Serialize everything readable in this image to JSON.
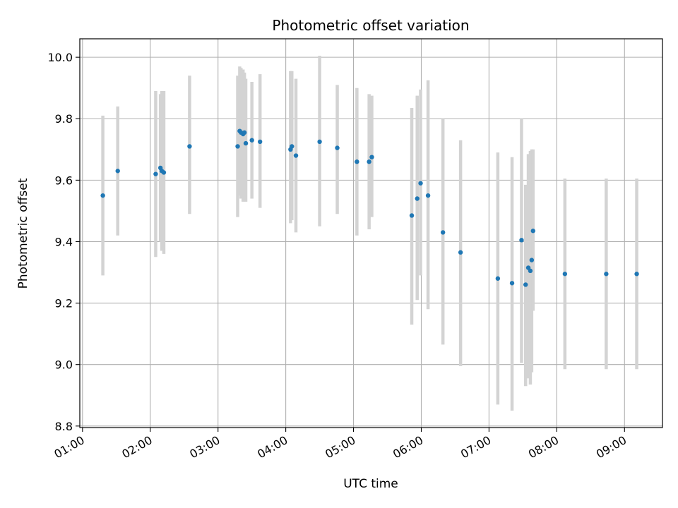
{
  "chart_data": {
    "type": "scatter",
    "title": "Photometric offset variation",
    "xlabel": "UTC time",
    "ylabel": "Photometric offset",
    "xlim": [
      0.96,
      9.56
    ],
    "ylim": [
      8.795,
      10.06
    ],
    "x_unit": "hours UTC",
    "x_ticks": [
      {
        "value": 1,
        "label": "01:00"
      },
      {
        "value": 2,
        "label": "02:00"
      },
      {
        "value": 3,
        "label": "03:00"
      },
      {
        "value": 4,
        "label": "04:00"
      },
      {
        "value": 5,
        "label": "05:00"
      },
      {
        "value": 6,
        "label": "06:00"
      },
      {
        "value": 7,
        "label": "07:00"
      },
      {
        "value": 8,
        "label": "08:00"
      },
      {
        "value": 9,
        "label": "09:00"
      }
    ],
    "y_ticks": [
      {
        "value": 8.8,
        "label": "8.8"
      },
      {
        "value": 9.0,
        "label": "9.0"
      },
      {
        "value": 9.2,
        "label": "9.2"
      },
      {
        "value": 9.4,
        "label": "9.4"
      },
      {
        "value": 9.6,
        "label": "9.6"
      },
      {
        "value": 9.8,
        "label": "9.8"
      },
      {
        "value": 10.0,
        "label": "10.0"
      }
    ],
    "grid": true,
    "colors": {
      "points": "#1f77b4",
      "errorbars": "#d3d3d3",
      "grid": "#b0b0b0"
    },
    "points": [
      {
        "x": 1.3,
        "y": 9.55,
        "lo": 9.29,
        "hi": 9.81
      },
      {
        "x": 1.52,
        "y": 9.63,
        "lo": 9.42,
        "hi": 9.84
      },
      {
        "x": 2.08,
        "y": 9.62,
        "lo": 9.35,
        "hi": 9.89
      },
      {
        "x": 2.15,
        "y": 9.64,
        "lo": 9.4,
        "hi": 9.88
      },
      {
        "x": 2.17,
        "y": 9.63,
        "lo": 9.37,
        "hi": 9.89
      },
      {
        "x": 2.2,
        "y": 9.625,
        "lo": 9.36,
        "hi": 9.89
      },
      {
        "x": 2.58,
        "y": 9.71,
        "lo": 9.49,
        "hi": 9.94
      },
      {
        "x": 3.29,
        "y": 9.71,
        "lo": 9.48,
        "hi": 9.94
      },
      {
        "x": 3.32,
        "y": 9.76,
        "lo": 9.55,
        "hi": 9.97
      },
      {
        "x": 3.34,
        "y": 9.755,
        "lo": 9.54,
        "hi": 9.965
      },
      {
        "x": 3.37,
        "y": 9.75,
        "lo": 9.53,
        "hi": 9.96
      },
      {
        "x": 3.39,
        "y": 9.755,
        "lo": 9.54,
        "hi": 9.95
      },
      {
        "x": 3.41,
        "y": 9.72,
        "lo": 9.53,
        "hi": 9.93
      },
      {
        "x": 3.5,
        "y": 9.73,
        "lo": 9.54,
        "hi": 9.92
      },
      {
        "x": 3.62,
        "y": 9.725,
        "lo": 9.51,
        "hi": 9.945
      },
      {
        "x": 4.07,
        "y": 9.7,
        "lo": 9.46,
        "hi": 9.955
      },
      {
        "x": 4.09,
        "y": 9.71,
        "lo": 9.47,
        "hi": 9.955
      },
      {
        "x": 4.15,
        "y": 9.68,
        "lo": 9.43,
        "hi": 9.93
      },
      {
        "x": 4.5,
        "y": 9.725,
        "lo": 9.45,
        "hi": 10.005
      },
      {
        "x": 4.76,
        "y": 9.705,
        "lo": 9.49,
        "hi": 9.91
      },
      {
        "x": 5.05,
        "y": 9.66,
        "lo": 9.42,
        "hi": 9.9
      },
      {
        "x": 5.23,
        "y": 9.66,
        "lo": 9.44,
        "hi": 9.88
      },
      {
        "x": 5.27,
        "y": 9.675,
        "lo": 9.48,
        "hi": 9.875
      },
      {
        "x": 5.86,
        "y": 9.485,
        "lo": 9.13,
        "hi": 9.835
      },
      {
        "x": 5.94,
        "y": 9.54,
        "lo": 9.21,
        "hi": 9.875
      },
      {
        "x": 5.99,
        "y": 9.59,
        "lo": 9.29,
        "hi": 9.895
      },
      {
        "x": 6.1,
        "y": 9.55,
        "lo": 9.18,
        "hi": 9.925
      },
      {
        "x": 6.32,
        "y": 9.43,
        "lo": 9.065,
        "hi": 9.8
      },
      {
        "x": 6.58,
        "y": 9.365,
        "lo": 8.995,
        "hi": 9.73
      },
      {
        "x": 7.13,
        "y": 9.28,
        "lo": 8.87,
        "hi": 9.69
      },
      {
        "x": 7.34,
        "y": 9.265,
        "lo": 8.85,
        "hi": 9.675
      },
      {
        "x": 7.48,
        "y": 9.405,
        "lo": 9.005,
        "hi": 9.8
      },
      {
        "x": 7.54,
        "y": 9.26,
        "lo": 8.93,
        "hi": 9.585
      },
      {
        "x": 7.58,
        "y": 9.315,
        "lo": 8.955,
        "hi": 9.685
      },
      {
        "x": 7.61,
        "y": 9.305,
        "lo": 8.935,
        "hi": 9.695
      },
      {
        "x": 7.63,
        "y": 9.34,
        "lo": 8.975,
        "hi": 9.7
      },
      {
        "x": 7.65,
        "y": 9.435,
        "lo": 9.175,
        "hi": 9.7
      },
      {
        "x": 8.12,
        "y": 9.295,
        "lo": 8.985,
        "hi": 9.605
      },
      {
        "x": 8.73,
        "y": 9.295,
        "lo": 8.985,
        "hi": 9.605
      },
      {
        "x": 9.18,
        "y": 9.295,
        "lo": 8.985,
        "hi": 9.605
      }
    ]
  }
}
